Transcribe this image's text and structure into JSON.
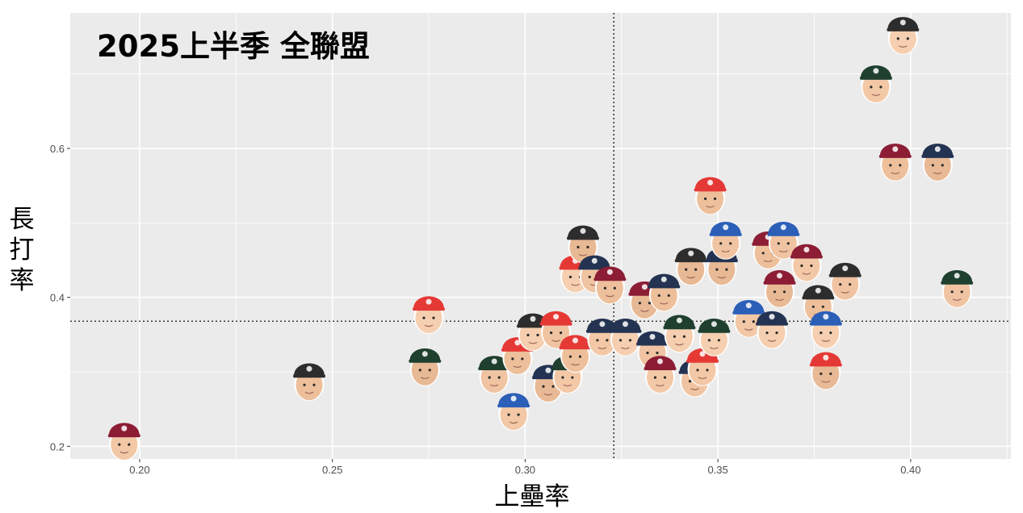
{
  "chart_data": {
    "type": "scatter",
    "title": "2025上半季  全聯盟",
    "xlabel": "上壘率",
    "ylabel": "長打率",
    "xlim": [
      0.182,
      0.426
    ],
    "ylim": [
      0.183,
      0.782
    ],
    "x_ticks": [
      0.2,
      0.25,
      0.3,
      0.35,
      0.4
    ],
    "x_tick_labels": [
      "0.20",
      "0.25",
      "0.30",
      "0.35",
      "0.40"
    ],
    "y_ticks": [
      0.2,
      0.4,
      0.6
    ],
    "y_tick_labels": [
      "0.2",
      "0.4",
      "0.6"
    ],
    "reference_lines": {
      "x": 0.323,
      "y": 0.368
    },
    "grid": true,
    "marker": "player headshot with team cap",
    "team_colors": {
      "lions": "#2d2d2d",
      "monkeys": "#8c1d35",
      "guardians": "#243352",
      "brothers": "#2b5fb8",
      "dragons": "#e53935",
      "hawks": "#1f3f2f"
    },
    "points": [
      {
        "x": 0.196,
        "y": 0.21,
        "team": "monkeys"
      },
      {
        "x": 0.244,
        "y": 0.29,
        "team": "lions"
      },
      {
        "x": 0.275,
        "y": 0.38,
        "team": "dragons"
      },
      {
        "x": 0.274,
        "y": 0.31,
        "team": "hawks"
      },
      {
        "x": 0.292,
        "y": 0.3,
        "team": "hawks"
      },
      {
        "x": 0.297,
        "y": 0.25,
        "team": "brothers"
      },
      {
        "x": 0.298,
        "y": 0.325,
        "team": "dragons"
      },
      {
        "x": 0.302,
        "y": 0.357,
        "team": "lions"
      },
      {
        "x": 0.306,
        "y": 0.288,
        "team": "guardians"
      },
      {
        "x": 0.308,
        "y": 0.36,
        "team": "dragons"
      },
      {
        "x": 0.311,
        "y": 0.3,
        "team": "hawks"
      },
      {
        "x": 0.313,
        "y": 0.328,
        "team": "dragons"
      },
      {
        "x": 0.313,
        "y": 0.435,
        "team": "dragons"
      },
      {
        "x": 0.315,
        "y": 0.475,
        "team": "lions"
      },
      {
        "x": 0.318,
        "y": 0.435,
        "team": "guardians"
      },
      {
        "x": 0.32,
        "y": 0.35,
        "team": "guardians"
      },
      {
        "x": 0.322,
        "y": 0.42,
        "team": "monkeys"
      },
      {
        "x": 0.326,
        "y": 0.35,
        "team": "guardians"
      },
      {
        "x": 0.331,
        "y": 0.4,
        "team": "monkeys"
      },
      {
        "x": 0.333,
        "y": 0.333,
        "team": "guardians"
      },
      {
        "x": 0.335,
        "y": 0.3,
        "team": "monkeys"
      },
      {
        "x": 0.336,
        "y": 0.41,
        "team": "guardians"
      },
      {
        "x": 0.34,
        "y": 0.355,
        "team": "hawks"
      },
      {
        "x": 0.343,
        "y": 0.445,
        "team": "lions"
      },
      {
        "x": 0.344,
        "y": 0.295,
        "team": "guardians"
      },
      {
        "x": 0.346,
        "y": 0.31,
        "team": "dragons"
      },
      {
        "x": 0.348,
        "y": 0.54,
        "team": "dragons"
      },
      {
        "x": 0.349,
        "y": 0.35,
        "team": "hawks"
      },
      {
        "x": 0.351,
        "y": 0.445,
        "team": "guardians"
      },
      {
        "x": 0.352,
        "y": 0.48,
        "team": "brothers"
      },
      {
        "x": 0.358,
        "y": 0.375,
        "team": "brothers"
      },
      {
        "x": 0.363,
        "y": 0.467,
        "team": "monkeys"
      },
      {
        "x": 0.364,
        "y": 0.36,
        "team": "guardians"
      },
      {
        "x": 0.366,
        "y": 0.415,
        "team": "monkeys"
      },
      {
        "x": 0.367,
        "y": 0.48,
        "team": "brothers"
      },
      {
        "x": 0.373,
        "y": 0.45,
        "team": "monkeys"
      },
      {
        "x": 0.376,
        "y": 0.395,
        "team": "lions"
      },
      {
        "x": 0.378,
        "y": 0.36,
        "team": "brothers"
      },
      {
        "x": 0.378,
        "y": 0.305,
        "team": "dragons"
      },
      {
        "x": 0.383,
        "y": 0.425,
        "team": "lions"
      },
      {
        "x": 0.391,
        "y": 0.69,
        "team": "hawks"
      },
      {
        "x": 0.396,
        "y": 0.585,
        "team": "monkeys"
      },
      {
        "x": 0.398,
        "y": 0.755,
        "team": "lions"
      },
      {
        "x": 0.407,
        "y": 0.585,
        "team": "guardians"
      },
      {
        "x": 0.412,
        "y": 0.415,
        "team": "hawks"
      }
    ]
  }
}
